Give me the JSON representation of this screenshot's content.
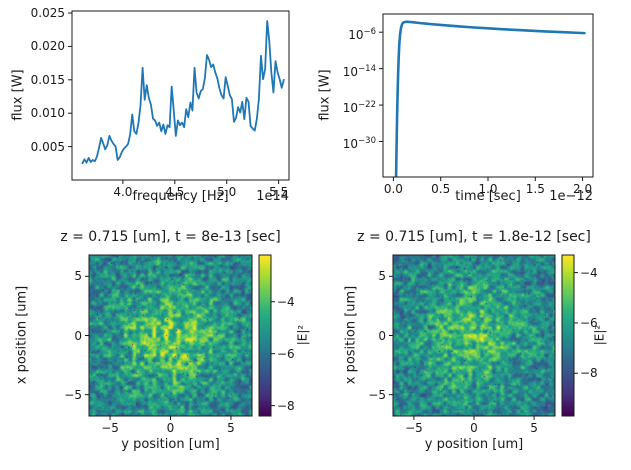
{
  "figure": {
    "background": "#ffffff",
    "text_color": "#1a1a1a",
    "line_color": "#1f77b4",
    "viridis_stops": [
      [
        0.0,
        "#440154"
      ],
      [
        0.13,
        "#46327e"
      ],
      [
        0.25,
        "#3b518b"
      ],
      [
        0.38,
        "#2c718e"
      ],
      [
        0.5,
        "#21918c"
      ],
      [
        0.63,
        "#27ad81"
      ],
      [
        0.75,
        "#5cc863"
      ],
      [
        0.88,
        "#aadc32"
      ],
      [
        1.0,
        "#fde725"
      ]
    ]
  },
  "chart_data": [
    {
      "id": "flux-spectrum",
      "type": "line",
      "title": "",
      "xlabel": "frequency [Hz]",
      "x_offset": "1e14",
      "ylabel": "flux [W]",
      "xlim": [
        3.51,
        5.6
      ],
      "ylim": [
        0.0,
        0.0253
      ],
      "grid": false,
      "xticks": [
        {
          "v": 4.0,
          "label": "4.0"
        },
        {
          "v": 4.5,
          "label": "4.5"
        },
        {
          "v": 5.0,
          "label": "5.0"
        },
        {
          "v": 5.5,
          "label": "5.5"
        }
      ],
      "yticks": [
        {
          "v": 0.005,
          "label": "0.005"
        },
        {
          "v": 0.01,
          "label": "0.010"
        },
        {
          "v": 0.015,
          "label": "0.015"
        },
        {
          "v": 0.02,
          "label": "0.020"
        },
        {
          "v": 0.025,
          "label": "0.025"
        }
      ],
      "x": [
        3.61,
        3.63,
        3.65,
        3.67,
        3.69,
        3.71,
        3.73,
        3.75,
        3.77,
        3.79,
        3.81,
        3.83,
        3.85,
        3.87,
        3.89,
        3.91,
        3.93,
        3.95,
        3.97,
        3.99,
        4.01,
        4.03,
        4.05,
        4.07,
        4.09,
        4.11,
        4.13,
        4.15,
        4.17,
        4.19,
        4.21,
        4.23,
        4.25,
        4.27,
        4.29,
        4.31,
        4.33,
        4.35,
        4.37,
        4.39,
        4.41,
        4.43,
        4.45,
        4.47,
        4.49,
        4.51,
        4.53,
        4.55,
        4.57,
        4.59,
        4.61,
        4.63,
        4.65,
        4.67,
        4.69,
        4.71,
        4.73,
        4.75,
        4.77,
        4.79,
        4.81,
        4.83,
        4.85,
        4.87,
        4.89,
        4.91,
        4.93,
        4.95,
        4.97,
        4.99,
        5.01,
        5.03,
        5.05,
        5.07,
        5.09,
        5.11,
        5.13,
        5.15,
        5.17,
        5.19,
        5.21,
        5.23,
        5.25,
        5.27,
        5.29,
        5.31,
        5.33,
        5.35,
        5.37,
        5.39,
        5.41,
        5.43,
        5.45,
        5.47,
        5.49,
        5.51,
        5.53,
        5.55
      ],
      "y": [
        0.0025,
        0.0031,
        0.0026,
        0.0033,
        0.0027,
        0.003,
        0.0028,
        0.0035,
        0.0048,
        0.0063,
        0.0055,
        0.0046,
        0.0052,
        0.0066,
        0.0059,
        0.0054,
        0.005,
        0.003,
        0.0034,
        0.0042,
        0.0047,
        0.005,
        0.0054,
        0.0068,
        0.0098,
        0.0073,
        0.0069,
        0.0085,
        0.0112,
        0.0168,
        0.012,
        0.0142,
        0.0123,
        0.0113,
        0.0092,
        0.0089,
        0.0081,
        0.0086,
        0.0073,
        0.0083,
        0.0069,
        0.0082,
        0.0079,
        0.014,
        0.0104,
        0.0066,
        0.0089,
        0.0082,
        0.0086,
        0.0079,
        0.0106,
        0.0094,
        0.0116,
        0.0104,
        0.0168,
        0.0131,
        0.0122,
        0.0133,
        0.0136,
        0.0153,
        0.0187,
        0.018,
        0.0169,
        0.0173,
        0.0161,
        0.0152,
        0.0137,
        0.0127,
        0.0122,
        0.0154,
        0.0141,
        0.0127,
        0.0121,
        0.0087,
        0.0093,
        0.0109,
        0.0101,
        0.0117,
        0.0091,
        0.0123,
        0.0117,
        0.0081,
        0.0077,
        0.0074,
        0.0091,
        0.0121,
        0.0186,
        0.0151,
        0.0166,
        0.0238,
        0.0208,
        0.0161,
        0.0131,
        0.0178,
        0.0161,
        0.0151,
        0.0138,
        0.015
      ]
    },
    {
      "id": "flux-decay",
      "type": "line",
      "title": "",
      "xlabel": "time [sec]",
      "x_offset": "1e−12",
      "ylabel": "flux [W]",
      "yscale": "log",
      "xlim": [
        -0.11,
        2.11
      ],
      "ylim_log10": [
        -37.8,
        -2.0
      ],
      "grid": false,
      "xticks": [
        {
          "v": 0.0,
          "label": "0.0"
        },
        {
          "v": 0.5,
          "label": "0.5"
        },
        {
          "v": 1.0,
          "label": "1.0"
        },
        {
          "v": 1.5,
          "label": "1.5"
        },
        {
          "v": 2.0,
          "label": "2.0"
        }
      ],
      "yticks": [
        {
          "v": -6,
          "base": "10",
          "sup": "−6"
        },
        {
          "v": -14,
          "base": "10",
          "sup": "−14"
        },
        {
          "v": -22,
          "base": "10",
          "sup": "−22"
        },
        {
          "v": -30,
          "base": "10",
          "sup": "−30"
        }
      ],
      "x": [
        0.028,
        0.032,
        0.036,
        0.04,
        0.045,
        0.05,
        0.056,
        0.062,
        0.07,
        0.08,
        0.09,
        0.1,
        0.115,
        0.13,
        0.15,
        0.175,
        0.2,
        0.25,
        0.3,
        0.35,
        0.4,
        0.5,
        0.6,
        0.7,
        0.8,
        0.9,
        1.0,
        1.1,
        1.2,
        1.3,
        1.4,
        1.5,
        1.6,
        1.7,
        1.8,
        1.9,
        2.02
      ],
      "log10y": [
        -38.5,
        -33,
        -28,
        -23.5,
        -19,
        -15,
        -11.5,
        -8.8,
        -6.6,
        -5.1,
        -4.35,
        -3.95,
        -3.78,
        -3.72,
        -3.72,
        -3.76,
        -3.8,
        -3.92,
        -4.03,
        -4.12,
        -4.22,
        -4.4,
        -4.57,
        -4.73,
        -4.88,
        -5.02,
        -5.15,
        -5.28,
        -5.4,
        -5.51,
        -5.62,
        -5.72,
        -5.82,
        -5.91,
        -6.0,
        -6.09,
        -6.2
      ]
    },
    {
      "id": "field-snapshot-t1",
      "type": "heatmap",
      "title": "z = 0.715 [um], t = 8e-13 [sec]",
      "xlabel": "y position [um]",
      "ylabel": "x position [um]",
      "xlim": [
        -6.74,
        6.74
      ],
      "ylim": [
        -6.8,
        6.8
      ],
      "colormap": "viridis",
      "pattern": "random speckle field, brightest near center",
      "xticks": [
        {
          "v": -5,
          "label": "−5"
        },
        {
          "v": 0,
          "label": "0"
        },
        {
          "v": 5,
          "label": "5"
        }
      ],
      "yticks": [
        {
          "v": 5,
          "label": "5"
        },
        {
          "v": 0,
          "label": "0"
        },
        {
          "v": -5,
          "label": "−5"
        }
      ],
      "colorbar": {
        "label": "|E|²",
        "vmin": -8.4,
        "vmax": -2.2,
        "ticks": [
          {
            "v": -4,
            "label": "−4"
          },
          {
            "v": -6,
            "label": "−6"
          },
          {
            "v": -8,
            "label": "−8"
          }
        ]
      },
      "noise": {
        "seed": 11,
        "center_boost": 0.3
      }
    },
    {
      "id": "field-snapshot-t2",
      "type": "heatmap",
      "title": "z = 0.715 [um], t = 1.8e-12 [sec]",
      "xlabel": "y position [um]",
      "ylabel": "x position [um]",
      "xlim": [
        -6.74,
        6.74
      ],
      "ylim": [
        -6.8,
        6.8
      ],
      "colormap": "viridis",
      "pattern": "random speckle field, brightest near center, slightly dimmer than t1",
      "xticks": [
        {
          "v": -5,
          "label": "−5"
        },
        {
          "v": 0,
          "label": "0"
        },
        {
          "v": 5,
          "label": "5"
        }
      ],
      "yticks": [
        {
          "v": 5,
          "label": "5"
        },
        {
          "v": 0,
          "label": "0"
        },
        {
          "v": -5,
          "label": "−5"
        }
      ],
      "colorbar": {
        "label": "|E|²",
        "vmin": -9.7,
        "vmax": -3.3,
        "ticks": [
          {
            "v": -4,
            "label": "−4"
          },
          {
            "v": -6,
            "label": "−6"
          },
          {
            "v": -8,
            "label": "−8"
          }
        ]
      },
      "noise": {
        "seed": 29,
        "center_boost": 0.24
      }
    }
  ]
}
